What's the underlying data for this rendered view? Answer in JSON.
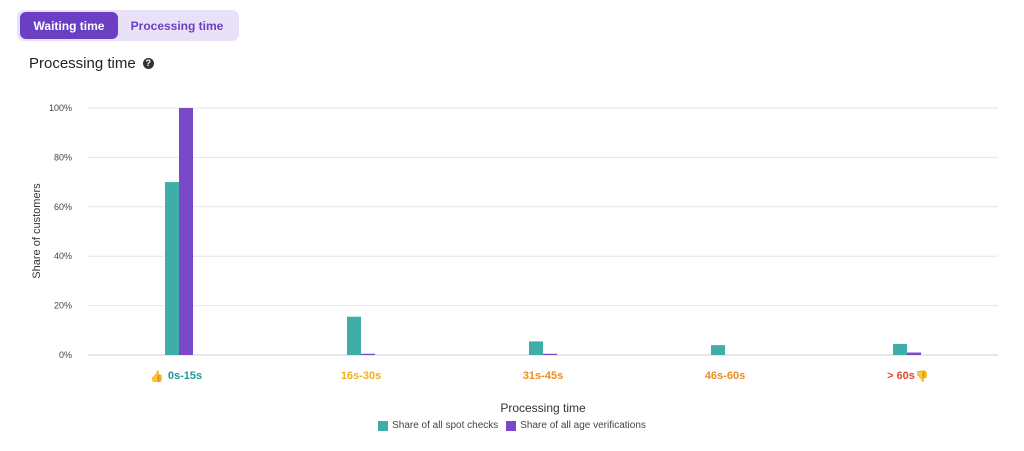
{
  "tabs": [
    {
      "label": "Waiting time",
      "active": true
    },
    {
      "label": "Processing time",
      "active": false
    }
  ],
  "title": "Processing time",
  "help_icon": "question-circle-icon",
  "colors": {
    "accent": "#6b3fc4",
    "series_spot": "#3fada8",
    "series_age": "#7a49c9",
    "grid": "#e6e6e6",
    "cat_green": "#1f9a94",
    "cat_yellow": "#f0b11f",
    "cat_orange": "#ef8b1f",
    "cat_red": "#e8442c"
  },
  "chart_data": {
    "type": "bar",
    "xlabel": "Processing time",
    "ylabel": "Share of customers",
    "ylim": [
      0,
      100
    ],
    "yticks": [
      "0%",
      "20%",
      "40%",
      "60%",
      "80%",
      "100%"
    ],
    "grid": true,
    "legend_position": "bottom-center",
    "categories": [
      {
        "label": "0s-15s",
        "color": "#1f9a94",
        "icon": "thumbs-up-icon"
      },
      {
        "label": "16s-30s",
        "color": "#f0b11f",
        "icon": ""
      },
      {
        "label": "31s-45s",
        "color": "#ef8b1f",
        "icon": ""
      },
      {
        "label": "46s-60s",
        "color": "#ef8b1f",
        "icon": ""
      },
      {
        "label": "> 60s",
        "color": "#e8442c",
        "icon": "thumbs-down-icon"
      }
    ],
    "series": [
      {
        "name": "Share of all spot checks",
        "color": "#3fada8",
        "values": [
          70,
          15.5,
          5.5,
          4,
          4.5
        ]
      },
      {
        "name": "Share of all age verifications",
        "color": "#7a49c9",
        "values": [
          100,
          0.5,
          0.5,
          0,
          1
        ]
      }
    ]
  }
}
